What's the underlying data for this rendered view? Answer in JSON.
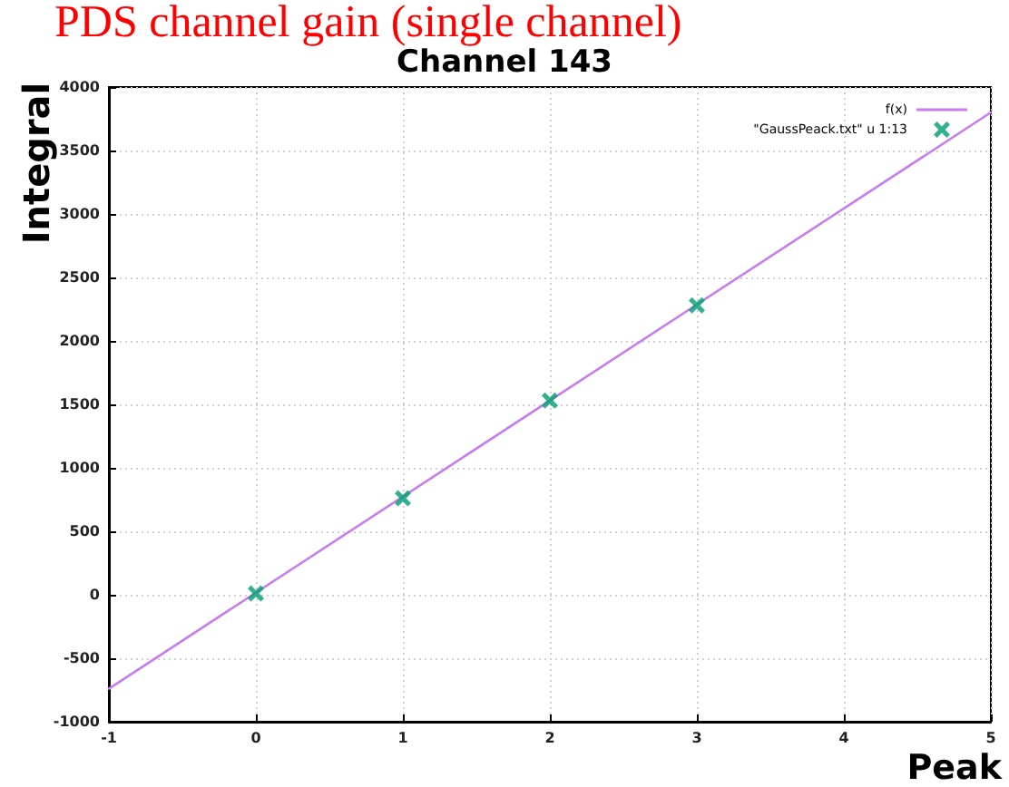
{
  "chart_data": {
    "type": "scatter",
    "title": "Channel 143",
    "annotations": [
      "PDS channel gain (single channel)"
    ],
    "xlabel": "Peak",
    "ylabel": "Integral",
    "series": [
      {
        "name": "f(x)",
        "type": "line",
        "marker": "none",
        "color": "#c77cf0",
        "x": [
          -1,
          5
        ],
        "values": [
          -740,
          3800
        ]
      },
      {
        "name": "\"GaussPeack.txt\" u 1:13",
        "marker": "cross",
        "color": "#009e73",
        "x": [
          0,
          1,
          2,
          3
        ],
        "values": [
          10,
          760,
          1530,
          2280
        ]
      }
    ],
    "xlim": [
      -1,
      5
    ],
    "xticks": [
      -1,
      0,
      1,
      2,
      3,
      4,
      5
    ],
    "ylim": [
      -1000,
      4000
    ],
    "yticks": [
      -1000,
      -500,
      0,
      500,
      1000,
      1500,
      2000,
      2500,
      3000,
      3500,
      4000
    ],
    "grid": true,
    "legend": "top right"
  }
}
